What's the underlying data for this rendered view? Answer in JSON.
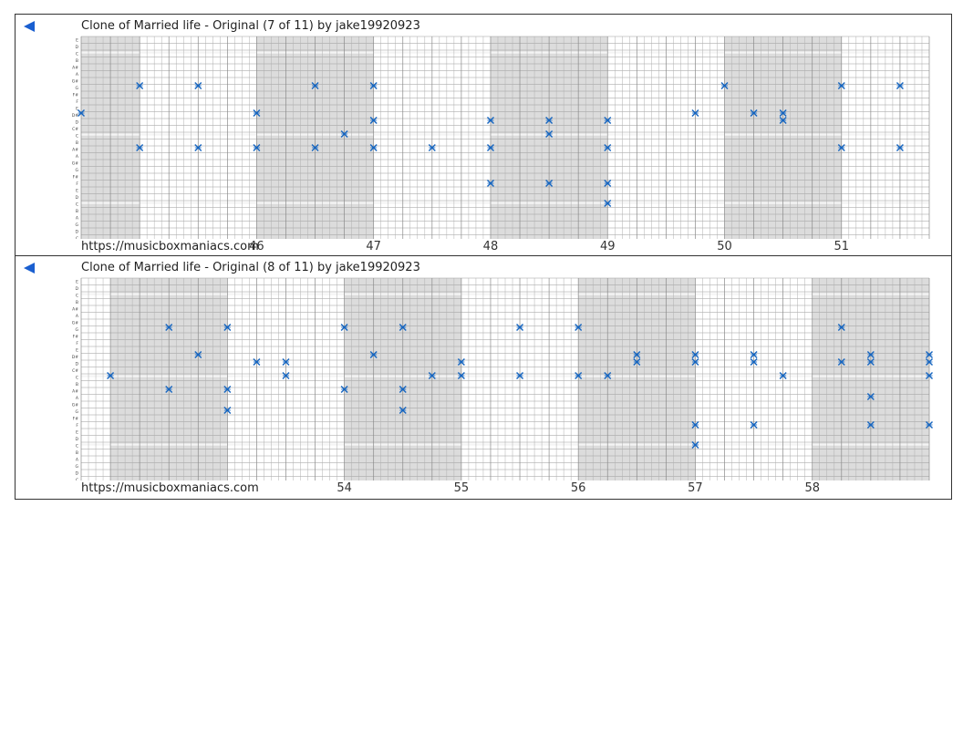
{
  "colors": {
    "note": "#1565c0",
    "shade": "#dcdcdc",
    "grid": "#999999",
    "accent": "#1a5fd0"
  },
  "icons": {
    "back": "left-triangle-icon",
    "note": "x-mark-icon"
  },
  "note_labels": [
    "E",
    "D",
    "C",
    "B",
    "A#",
    "A",
    "G#",
    "G",
    "F#",
    "F",
    "E",
    "D#",
    "D",
    "C#",
    "C",
    "B",
    "A#",
    "A",
    "G#",
    "G",
    "F#",
    "F",
    "E",
    "D",
    "C",
    "B",
    "A",
    "G",
    "D",
    "C"
  ],
  "strips": [
    {
      "back_label": "◀",
      "title": "Clone of Married life - Original (7 of 11) by jake19920923",
      "url": "https://musicboxmaniacs.com",
      "measures": [
        {
          "label": "46",
          "beat": 6
        },
        {
          "label": "47",
          "beat": 10
        },
        {
          "label": "48",
          "beat": 14
        },
        {
          "label": "49",
          "beat": 18
        },
        {
          "label": "50",
          "beat": 22
        },
        {
          "label": "51",
          "beat": 26
        }
      ],
      "shaded_ranges": [
        [
          0,
          2
        ],
        [
          6,
          10
        ],
        [
          14,
          18
        ],
        [
          22,
          26
        ]
      ],
      "notes": [
        [
          "F",
          0
        ],
        [
          "C",
          2
        ],
        [
          "A",
          2
        ],
        [
          "C",
          4
        ],
        [
          "A",
          4
        ],
        [
          "C",
          6
        ],
        [
          "F",
          6
        ],
        [
          "C",
          8
        ],
        [
          "A",
          8
        ],
        [
          "D",
          9
        ],
        [
          "E",
          10
        ],
        [
          "C",
          10
        ],
        [
          "A",
          10
        ],
        [
          "C",
          12
        ],
        [
          "C",
          14
        ],
        [
          "G",
          14
        ],
        [
          "E",
          14
        ],
        [
          "D",
          16
        ],
        [
          "G",
          16
        ],
        [
          "E",
          16
        ],
        [
          "E",
          18
        ],
        [
          "G",
          18
        ],
        [
          "E",
          18
        ],
        [
          "C",
          18
        ],
        [
          "F",
          21
        ],
        [
          "A",
          22
        ],
        [
          "F",
          23
        ],
        [
          "E",
          24
        ],
        [
          "F",
          24
        ],
        [
          "C",
          26
        ],
        [
          "A",
          26
        ],
        [
          "C",
          28
        ],
        [
          "A",
          28
        ]
      ]
    },
    {
      "back_label": "◀",
      "title": "Clone of Married life - Original (8 of 11) by jake19920923",
      "url": "https://musicboxmaniacs.com",
      "measures": [
        {
          "label": "54",
          "beat": 9
        },
        {
          "label": "55",
          "beat": 13
        },
        {
          "label": "56",
          "beat": 17
        },
        {
          "label": "57",
          "beat": 21
        },
        {
          "label": "58",
          "beat": 25
        }
      ],
      "shaded_ranges": [
        [
          1,
          5
        ],
        [
          9,
          13
        ],
        [
          17,
          21
        ],
        [
          25,
          29
        ]
      ],
      "notes": [
        [
          "D",
          1
        ],
        [
          "C",
          3
        ],
        [
          "A",
          3
        ],
        [
          "F",
          4
        ],
        [
          "A",
          5
        ],
        [
          "C",
          5
        ],
        [
          "A",
          5
        ],
        [
          "E",
          6
        ],
        [
          "D",
          7
        ],
        [
          "E",
          7
        ],
        [
          "C",
          9
        ],
        [
          "A",
          9
        ],
        [
          "F",
          10
        ],
        [
          "A",
          11
        ],
        [
          "C",
          11
        ],
        [
          "A",
          11
        ],
        [
          "D",
          12
        ],
        [
          "E",
          13
        ],
        [
          "D",
          13
        ],
        [
          "A",
          15
        ],
        [
          "D",
          15
        ],
        [
          "A",
          17
        ],
        [
          "D",
          17
        ],
        [
          "D",
          18
        ],
        [
          "F",
          19
        ],
        [
          "E",
          19
        ],
        [
          "E",
          21
        ],
        [
          "G",
          21
        ],
        [
          "F",
          21
        ],
        [
          "E",
          21
        ],
        [
          "G",
          23
        ],
        [
          "F",
          23
        ],
        [
          "E",
          23
        ],
        [
          "D",
          24
        ],
        [
          "A",
          26
        ],
        [
          "E",
          26
        ],
        [
          "B",
          27
        ],
        [
          "G",
          27
        ],
        [
          "F",
          27
        ],
        [
          "E",
          27
        ],
        [
          "D",
          29
        ],
        [
          "G",
          29
        ],
        [
          "F",
          29
        ],
        [
          "E",
          29
        ]
      ]
    }
  ]
}
